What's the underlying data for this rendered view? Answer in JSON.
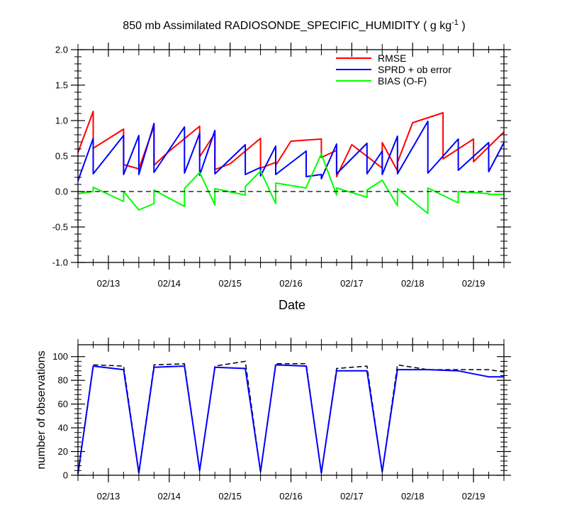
{
  "chart_data": [
    {
      "type": "line",
      "title": "850 mb Assimilated RADIOSONDE_SPECIFIC_HUMIDITY ( g kg",
      "title_superscript": "-1",
      "title_suffix": " )",
      "xlabel": "Date",
      "ylabel": "",
      "x_ticks": [
        "02/13",
        "02/14",
        "02/15",
        "02/16",
        "02/17",
        "02/18",
        "02/19"
      ],
      "xlim": [
        12.5,
        19.5
      ],
      "ylim": [
        -1.0,
        2.0
      ],
      "y_ticks": [
        "-1.0",
        "-0.5",
        "0.0",
        "0.5",
        "1.0",
        "1.5",
        "2.0"
      ],
      "zero_line": true,
      "grid": false,
      "legend_position": "top-right",
      "series": [
        {
          "name": "RMSE",
          "color": "#ff0000",
          "x": [
            12.5,
            12.75,
            12.75,
            13.25,
            13.25,
            13.5,
            13.75,
            13.75,
            14.0,
            14.5,
            14.5,
            14.75,
            14.75,
            15.0,
            15.5,
            15.5,
            15.75,
            15.75,
            16.0,
            16.5,
            16.5,
            16.75,
            16.75,
            17.0,
            17.5,
            17.5,
            17.75,
            17.75,
            18.0,
            18.5,
            18.5,
            19.0,
            19.0,
            19.5
          ],
          "y": [
            0.55,
            1.13,
            0.61,
            0.88,
            0.38,
            0.32,
            0.92,
            0.37,
            0.57,
            0.92,
            0.49,
            0.82,
            0.31,
            0.39,
            0.75,
            0.33,
            0.41,
            0.37,
            0.71,
            0.74,
            0.48,
            0.58,
            0.21,
            0.66,
            0.33,
            0.69,
            0.29,
            0.41,
            0.97,
            1.11,
            0.46,
            0.74,
            0.42,
            0.84
          ]
        },
        {
          "name": "SPRD + ob error",
          "color": "#0000ff",
          "x": [
            12.5,
            12.75,
            12.75,
            13.25,
            13.25,
            13.5,
            13.5,
            13.75,
            13.75,
            14.25,
            14.25,
            14.5,
            14.5,
            14.75,
            14.75,
            15.25,
            15.25,
            15.5,
            15.5,
            15.75,
            15.75,
            16.25,
            16.25,
            16.5,
            16.5,
            16.75,
            16.75,
            17.25,
            17.25,
            17.5,
            17.5,
            17.75,
            17.75,
            18.25,
            18.25,
            18.75,
            18.75,
            19.25,
            19.25,
            19.5
          ],
          "y": [
            0.15,
            0.75,
            0.25,
            0.79,
            0.24,
            0.79,
            0.24,
            0.96,
            0.27,
            0.91,
            0.26,
            0.82,
            0.23,
            0.86,
            0.25,
            0.66,
            0.24,
            0.34,
            0.22,
            0.64,
            0.24,
            0.57,
            0.21,
            0.24,
            0.18,
            0.67,
            0.25,
            0.68,
            0.25,
            0.57,
            0.24,
            0.78,
            0.25,
            0.99,
            0.26,
            0.74,
            0.3,
            0.69,
            0.28,
            0.69
          ]
        },
        {
          "name": "BIAS (O-F)",
          "color": "#00ff00",
          "x": [
            12.5,
            12.75,
            12.75,
            13.25,
            13.25,
            13.5,
            13.75,
            13.75,
            14.25,
            14.25,
            14.5,
            14.75,
            14.75,
            15.25,
            15.25,
            15.5,
            15.75,
            15.75,
            16.25,
            16.25,
            16.5,
            16.75,
            16.75,
            17.25,
            17.25,
            17.5,
            17.75,
            17.75,
            18.25,
            18.25,
            18.75,
            18.75,
            19.25,
            19.25,
            19.5
          ],
          "y": [
            -0.03,
            0.0,
            0.06,
            -0.14,
            0.0,
            -0.26,
            -0.17,
            0.02,
            -0.21,
            0.04,
            0.27,
            -0.19,
            0.04,
            -0.05,
            0.07,
            0.29,
            -0.17,
            0.12,
            0.05,
            0.06,
            0.53,
            -0.05,
            0.05,
            -0.08,
            0.02,
            0.16,
            -0.2,
            0.04,
            -0.31,
            0.05,
            -0.16,
            0.0,
            -0.03,
            -0.04,
            -0.04
          ]
        }
      ]
    },
    {
      "type": "line",
      "title": "",
      "xlabel": "",
      "ylabel": "number of observations",
      "x_ticks": [
        "02/13",
        "02/14",
        "02/15",
        "02/16",
        "02/17",
        "02/18",
        "02/19"
      ],
      "xlim": [
        12.5,
        19.5
      ],
      "ylim": [
        0,
        110
      ],
      "y_ticks": [
        "0",
        "20",
        "40",
        "60",
        "80",
        "100"
      ],
      "grid": false,
      "series": [
        {
          "color": "#000000",
          "dashed": true,
          "x": [
            12.5,
            12.75,
            13.25,
            13.5,
            13.75,
            14.25,
            14.5,
            14.75,
            15.25,
            15.5,
            15.75,
            16.25,
            16.5,
            16.75,
            17.25,
            17.5,
            17.75,
            18.25,
            18.75,
            19.25,
            19.5
          ],
          "y": [
            2,
            93,
            92,
            3,
            93,
            94,
            4,
            92,
            96,
            3,
            94,
            94,
            2,
            90,
            92,
            3,
            93,
            89,
            89,
            89,
            87
          ]
        },
        {
          "color": "#0000ff",
          "x": [
            12.5,
            12.75,
            13.25,
            13.5,
            13.75,
            14.25,
            14.5,
            14.75,
            15.25,
            15.5,
            15.75,
            16.25,
            16.5,
            16.75,
            17.25,
            17.5,
            17.75,
            18.25,
            18.75,
            19.25,
            19.5
          ],
          "y": [
            1,
            92,
            89,
            2,
            91,
            92,
            4,
            91,
            90,
            3,
            93,
            92,
            2,
            88,
            88,
            3,
            89,
            89,
            88,
            83,
            83
          ]
        }
      ]
    }
  ]
}
